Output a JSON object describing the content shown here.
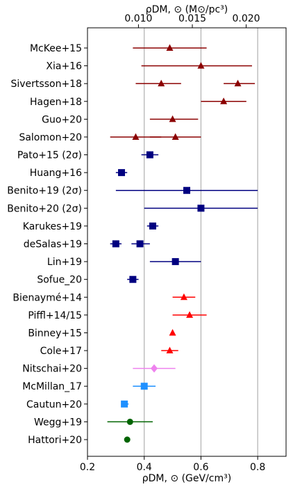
{
  "chart_data": {
    "type": "scatter",
    "title": "",
    "xlabel": "ρDM, ⊙ (GeV/cm³)",
    "xlabel_top": "ρDM, ⊙ (M⊙/pc³)",
    "xlim": [
      0.2,
      0.9
    ],
    "xticks": [
      0.2,
      0.4,
      0.6,
      0.8
    ],
    "xtick_labels": [
      "0.2",
      "0.4",
      "0.6",
      "0.8"
    ],
    "top_ticks": [
      0.01,
      0.015,
      0.02
    ],
    "top_tick_labels": [
      "0.010",
      "0.015",
      "0.020"
    ],
    "top_to_bottom_factor": 37.97,
    "vertical_grid_at": [
      0.4,
      0.6,
      0.8
    ],
    "colors": {
      "darkred": "#8b0000",
      "navy": "#000080",
      "red": "#ff0000",
      "violet": "#ee82ee",
      "dodgerblue": "#1e90ff",
      "darkgreen": "#006400",
      "grid": "#b0b0b0"
    },
    "rows": [
      {
        "label": "McKee+15",
        "points": [
          {
            "x": 0.49,
            "lo": 0.36,
            "hi": 0.62,
            "marker": "triangle",
            "color": "darkred"
          }
        ]
      },
      {
        "label": "Xia+16",
        "points": [
          {
            "x": 0.6,
            "lo": 0.39,
            "hi": 0.78,
            "marker": "triangle",
            "color": "darkred"
          }
        ]
      },
      {
        "label": "Sivertsson+18",
        "points": [
          {
            "x": 0.46,
            "lo": 0.37,
            "hi": 0.53,
            "marker": "triangle",
            "color": "darkred"
          },
          {
            "x": 0.73,
            "lo": 0.68,
            "hi": 0.79,
            "marker": "triangle",
            "color": "darkred"
          }
        ]
      },
      {
        "label": "Hagen+18",
        "points": [
          {
            "x": 0.68,
            "lo": 0.6,
            "hi": 0.76,
            "marker": "triangle",
            "color": "darkred"
          }
        ]
      },
      {
        "label": "Guo+20",
        "points": [
          {
            "x": 0.5,
            "lo": 0.42,
            "hi": 0.59,
            "marker": "triangle",
            "color": "darkred"
          }
        ]
      },
      {
        "label": "Salomon+20",
        "points": [
          {
            "x": 0.37,
            "lo": 0.28,
            "hi": 0.46,
            "marker": "triangle",
            "color": "darkred"
          },
          {
            "x": 0.51,
            "lo": 0.42,
            "hi": 0.6,
            "marker": "triangle",
            "color": "darkred"
          }
        ]
      },
      {
        "label": "Pato+15 (2σ)",
        "points": [
          {
            "x": 0.42,
            "lo": 0.39,
            "hi": 0.45,
            "marker": "square",
            "color": "navy"
          }
        ]
      },
      {
        "label": "Huang+16",
        "points": [
          {
            "x": 0.32,
            "lo": 0.3,
            "hi": 0.34,
            "marker": "square",
            "color": "navy"
          }
        ]
      },
      {
        "label": "Benito+19 (2σ)",
        "points": [
          {
            "x": 0.55,
            "lo": 0.3,
            "hi": 0.8,
            "marker": "square",
            "color": "navy"
          }
        ]
      },
      {
        "label": "Benito+20 (2σ)",
        "points": [
          {
            "x": 0.6,
            "lo": 0.4,
            "hi": 0.8,
            "marker": "square",
            "color": "navy"
          }
        ]
      },
      {
        "label": "Karukes+19",
        "points": [
          {
            "x": 0.43,
            "lo": 0.41,
            "hi": 0.45,
            "marker": "square",
            "color": "navy"
          }
        ]
      },
      {
        "label": "deSalas+19",
        "points": [
          {
            "x": 0.3,
            "lo": 0.28,
            "hi": 0.32,
            "marker": "square",
            "color": "navy"
          },
          {
            "x": 0.385,
            "lo": 0.355,
            "hi": 0.42,
            "marker": "square",
            "color": "navy"
          }
        ]
      },
      {
        "label": "Lin+19",
        "points": [
          {
            "x": 0.51,
            "lo": 0.42,
            "hi": 0.6,
            "marker": "square",
            "color": "navy"
          }
        ]
      },
      {
        "label": "Sofue_20",
        "points": [
          {
            "x": 0.36,
            "lo": 0.34,
            "hi": 0.38,
            "marker": "square",
            "color": "navy"
          }
        ]
      },
      {
        "label": "Bienaymé+14",
        "points": [
          {
            "x": 0.54,
            "lo": 0.5,
            "hi": 0.58,
            "marker": "triangle",
            "color": "red"
          }
        ]
      },
      {
        "label": "Piffl+14/15",
        "points": [
          {
            "x": 0.56,
            "lo": 0.5,
            "hi": 0.62,
            "marker": "triangle",
            "color": "red"
          }
        ]
      },
      {
        "label": "Binney+15",
        "points": [
          {
            "x": 0.5,
            "lo": null,
            "hi": null,
            "marker": "triangle",
            "color": "red"
          }
        ]
      },
      {
        "label": "Cole+17",
        "points": [
          {
            "x": 0.49,
            "lo": 0.46,
            "hi": 0.52,
            "marker": "triangle",
            "color": "red"
          }
        ]
      },
      {
        "label": "Nitschai+20",
        "points": [
          {
            "x": 0.435,
            "lo": 0.36,
            "hi": 0.51,
            "marker": "diamond",
            "color": "violet"
          }
        ]
      },
      {
        "label": "McMillan_17",
        "points": [
          {
            "x": 0.4,
            "lo": 0.36,
            "hi": 0.44,
            "marker": "square",
            "color": "dodgerblue"
          }
        ]
      },
      {
        "label": "Cautun+20",
        "points": [
          {
            "x": 0.33,
            "lo": 0.32,
            "hi": 0.345,
            "marker": "square",
            "color": "dodgerblue"
          }
        ]
      },
      {
        "label": "Wegg+19",
        "points": [
          {
            "x": 0.35,
            "lo": 0.27,
            "hi": 0.43,
            "marker": "circle",
            "color": "darkgreen"
          }
        ]
      },
      {
        "label": "Hattori+20",
        "points": [
          {
            "x": 0.34,
            "lo": null,
            "hi": null,
            "marker": "circle",
            "color": "darkgreen"
          }
        ]
      }
    ]
  }
}
